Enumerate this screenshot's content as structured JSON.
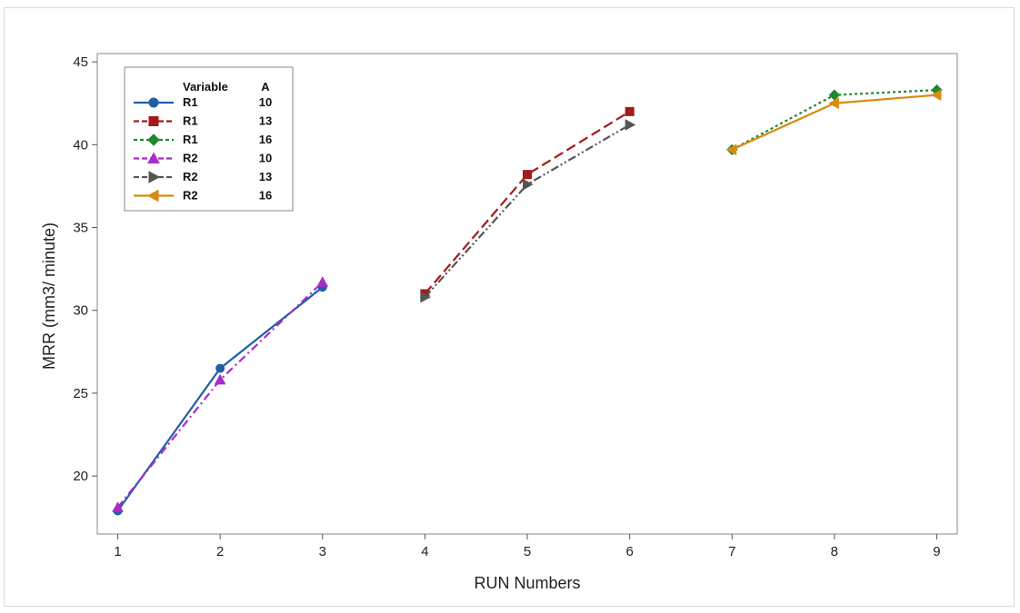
{
  "chart_data": {
    "type": "line",
    "title": "",
    "xlabel": "RUN Numbers",
    "ylabel": "MRR (mm3/ minute)",
    "xlim": [
      0.8,
      9.2
    ],
    "ylim": [
      16.5,
      45.5
    ],
    "x_ticks": [
      "1",
      "2",
      "3",
      "4",
      "5",
      "6",
      "7",
      "8",
      "9"
    ],
    "y_ticks": [
      "20",
      "25",
      "30",
      "35",
      "40",
      "45"
    ],
    "grid": false,
    "legend": {
      "placement": "top-left",
      "header_variable": "Variable",
      "header_a": "A"
    },
    "series": [
      {
        "name": "R1",
        "a": "10",
        "color": "#1f5fa8",
        "dash": "solid",
        "marker": "circle",
        "x": [
          1,
          2,
          3
        ],
        "y": [
          17.9,
          26.5,
          31.4
        ]
      },
      {
        "name": "R1",
        "a": "13",
        "color": "#a31b1b",
        "dash": "dash",
        "marker": "square",
        "x": [
          4,
          5,
          6
        ],
        "y": [
          31.0,
          38.2,
          42.0
        ]
      },
      {
        "name": "R1",
        "a": "16",
        "color": "#1f8a2b",
        "dash": "dot",
        "marker": "diamond",
        "x": [
          7,
          8,
          9
        ],
        "y": [
          39.7,
          43.0,
          43.3
        ]
      },
      {
        "name": "R2",
        "a": "10",
        "color": "#a82cc8",
        "dash": "dashdot",
        "marker": "triangle-up",
        "x": [
          1,
          2,
          3
        ],
        "y": [
          18.1,
          25.8,
          31.7
        ]
      },
      {
        "name": "R2",
        "a": "13",
        "color": "#555555",
        "dash": "dashdotdot",
        "marker": "triangle-right",
        "x": [
          4,
          5,
          6
        ],
        "y": [
          30.8,
          37.6,
          41.2
        ]
      },
      {
        "name": "R2",
        "a": "16",
        "color": "#d98a12",
        "dash": "solid",
        "marker": "triangle-left",
        "x": [
          7,
          8,
          9
        ],
        "y": [
          39.7,
          42.5,
          43.0
        ]
      }
    ]
  }
}
